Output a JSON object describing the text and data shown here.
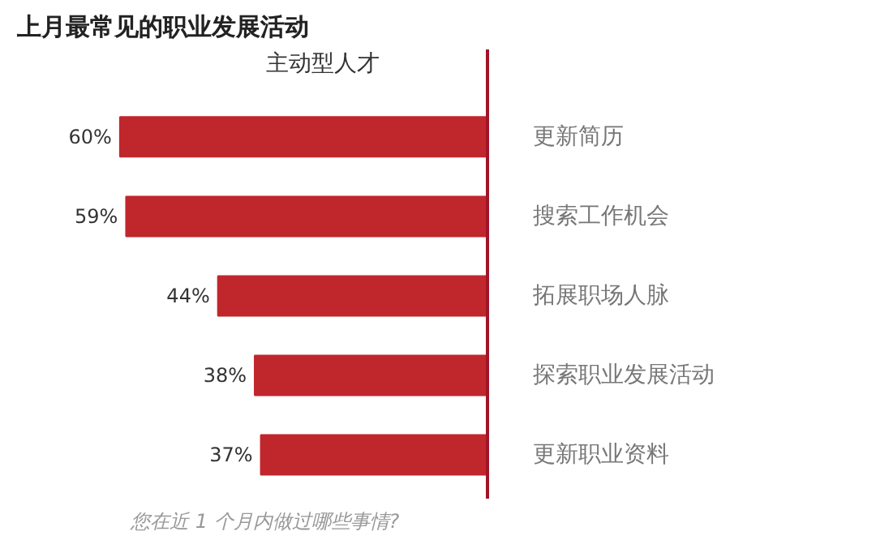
{
  "chart_data": {
    "type": "bar",
    "orientation": "horizontal",
    "title": "上月最常见的职业发展活动",
    "subtitle": "主动型人才",
    "categories": [
      "更新简历",
      "搜索工作机会",
      "拓展职场人脉",
      "探索职业发展活动",
      "更新职业资料"
    ],
    "values": [
      60,
      59,
      44,
      38,
      37
    ],
    "value_labels": [
      "60%",
      "59%",
      "44%",
      "38%",
      "37%"
    ],
    "color": "#c0272d",
    "grid": false,
    "tick_labels": "y",
    "annotations": [
      "您在近 1 个月内做过哪些事情?"
    ]
  }
}
